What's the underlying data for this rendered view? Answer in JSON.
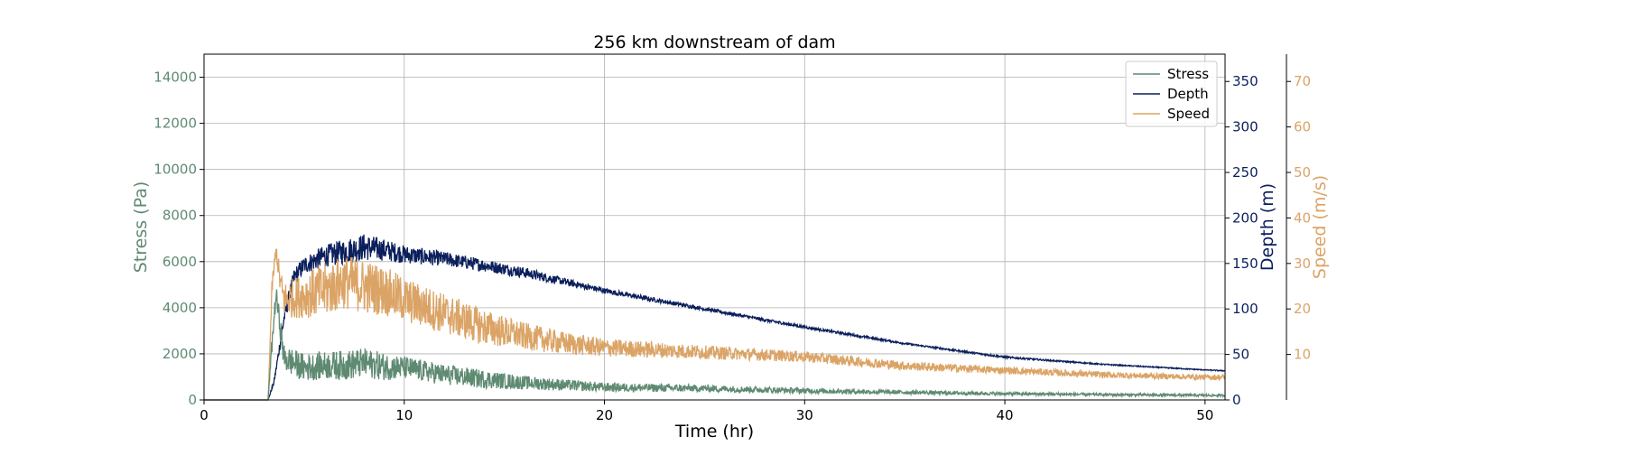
{
  "chart_data": {
    "type": "line",
    "title": "256 km downstream of dam",
    "xlabel": "Time (hr)",
    "xlim": [
      0,
      51
    ],
    "xticks": [
      0,
      10,
      20,
      30,
      40,
      50
    ],
    "grid": true,
    "legend_position": "top-right",
    "axes": {
      "stress": {
        "label": "Stress (Pa)",
        "side": "left",
        "color": "#5f8a72",
        "lim": [
          0,
          15000
        ],
        "ticks": [
          0,
          2000,
          4000,
          6000,
          8000,
          10000,
          12000,
          14000
        ]
      },
      "depth": {
        "label": "Depth (m)",
        "side": "right",
        "color": "#0b1f5c",
        "lim": [
          0,
          380
        ],
        "ticks": [
          0,
          50,
          100,
          150,
          200,
          250,
          300,
          350
        ]
      },
      "speed": {
        "label": "Speed (m/s)",
        "side": "right-outer",
        "color": "#dba466",
        "lim": [
          0,
          76
        ],
        "ticks": [
          10,
          20,
          30,
          40,
          50,
          60,
          70
        ]
      }
    },
    "series": [
      {
        "name": "Stress",
        "axis": "stress",
        "color": "#5f8a72",
        "x": [
          0,
          3.2,
          3.4,
          3.6,
          4,
          5,
          6,
          7,
          8,
          9,
          10,
          12,
          14,
          16,
          18,
          20,
          25,
          30,
          35,
          40,
          45,
          50,
          51
        ],
        "y": [
          0,
          0,
          2500,
          4600,
          1800,
          1400,
          1500,
          1500,
          1600,
          1450,
          1400,
          1100,
          900,
          750,
          650,
          550,
          500,
          400,
          330,
          270,
          230,
          200,
          190
        ],
        "noise": [
          0,
          0,
          400,
          400,
          600,
          600,
          600,
          650,
          650,
          600,
          500,
          450,
          400,
          300,
          250,
          200,
          150,
          120,
          90,
          70,
          60,
          50,
          50
        ]
      },
      {
        "name": "Depth",
        "axis": "depth",
        "color": "#0b1f5c",
        "x": [
          0,
          3.2,
          3.5,
          4,
          4.5,
          5,
          6,
          7,
          8,
          9,
          10,
          12,
          14,
          16,
          18,
          20,
          25,
          30,
          35,
          40,
          45,
          50,
          51
        ],
        "y": [
          0,
          0,
          20,
          90,
          135,
          148,
          158,
          163,
          168,
          165,
          160,
          155,
          148,
          140,
          130,
          120,
          100,
          80,
          62,
          47,
          39,
          33,
          32
        ],
        "noise": [
          0,
          0,
          3,
          8,
          10,
          10,
          12,
          14,
          15,
          12,
          10,
          8,
          7,
          6,
          4,
          3,
          2,
          1.5,
          1,
          1,
          0.6,
          0.5,
          0.5
        ]
      },
      {
        "name": "Speed",
        "axis": "speed",
        "color": "#dba466",
        "x": [
          0,
          3.2,
          3.4,
          3.6,
          3.8,
          4,
          5,
          6,
          7,
          8,
          9,
          10,
          12,
          14,
          16,
          18,
          20,
          25,
          30,
          35,
          40,
          45,
          50,
          51
        ],
        "y": [
          0,
          0,
          25,
          33,
          26,
          22,
          23,
          24,
          26,
          25,
          24,
          22,
          19,
          16,
          14,
          12.5,
          11.5,
          10.5,
          9.5,
          7.5,
          6.5,
          5.5,
          5,
          5
        ],
        "noise": [
          0,
          0,
          2,
          2,
          3,
          4,
          5,
          6,
          6,
          6,
          5.5,
          5,
          4.5,
          4,
          3,
          2.5,
          2,
          1.5,
          1.2,
          1,
          0.8,
          0.7,
          0.6,
          0.6
        ]
      }
    ]
  }
}
